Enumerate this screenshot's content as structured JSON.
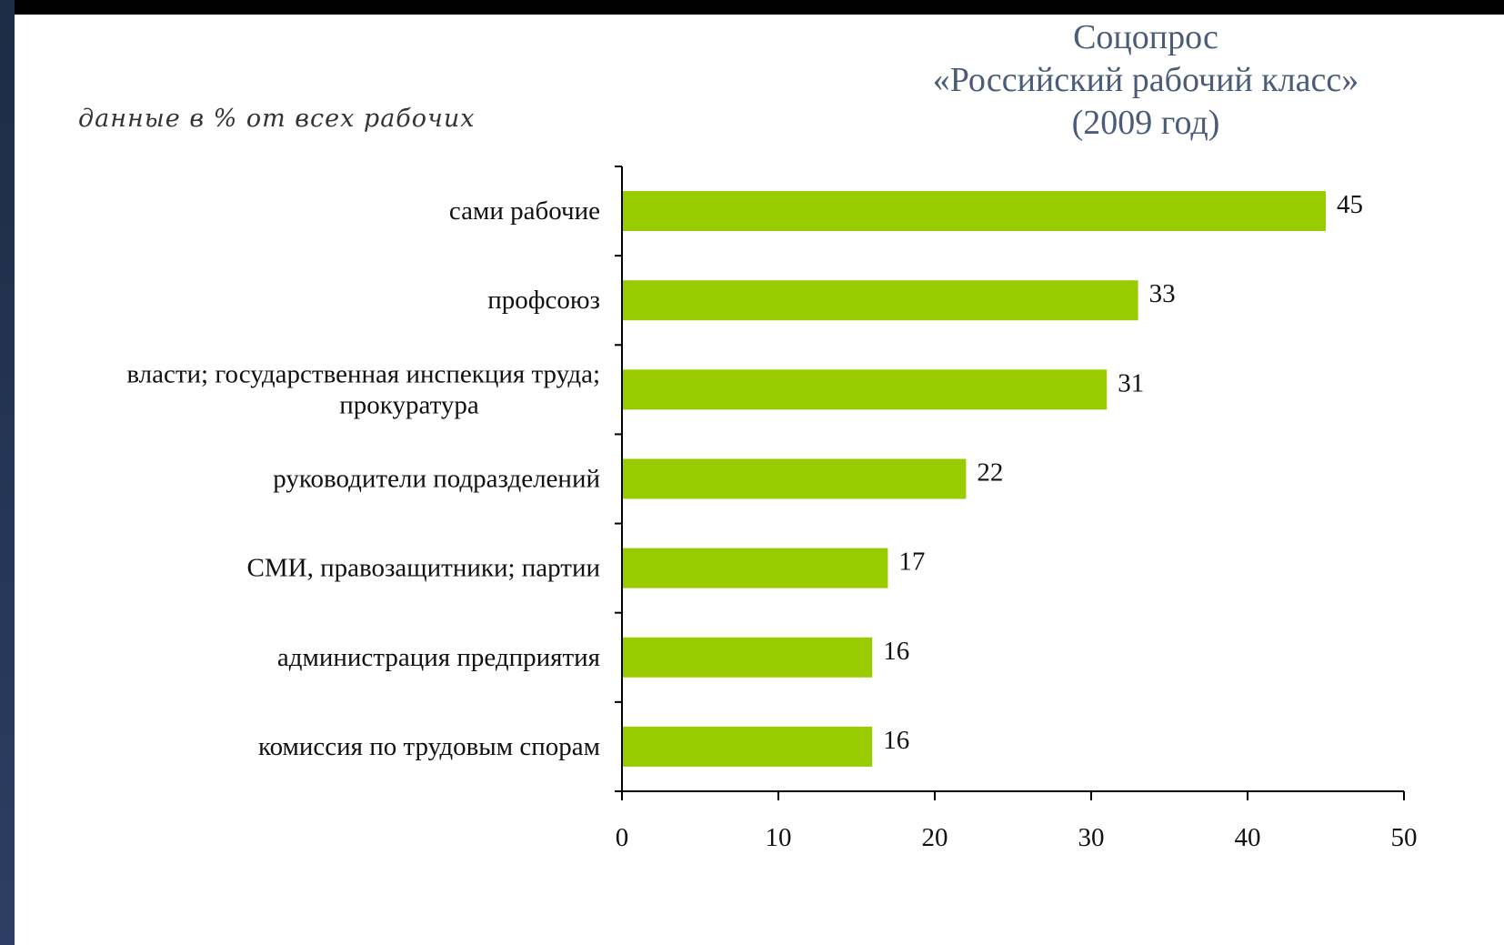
{
  "slide": {
    "title_lines": [
      "Соцопрос",
      "«Российский рабочий класс»",
      "(2009 год)"
    ]
  },
  "colors": {
    "bar": "#99cc00",
    "axis": "#000000"
  },
  "chart_data": {
    "type": "bar",
    "orientation": "horizontal",
    "note": "данные в % от всех рабочих",
    "categories": [
      "сами рабочие",
      "профсоюз",
      "власти; государственная инспекция труда; прокуратура",
      "руководители подразделений",
      "СМИ, правозащитники; партии",
      "администрация предприятия",
      "комиссия по трудовым спорам"
    ],
    "category_lines": [
      [
        "сами рабочие"
      ],
      [
        "профсоюз"
      ],
      [
        "власти; государственная инспекция труда;",
        "прокуратура"
      ],
      [
        "руководители подразделений"
      ],
      [
        "СМИ, правозащитники; партии"
      ],
      [
        "администрация предприятия"
      ],
      [
        "комиссия по трудовым спорам"
      ]
    ],
    "values": [
      45,
      33,
      31,
      22,
      17,
      16,
      16
    ],
    "value_labels": [
      "45",
      "33",
      "31",
      "22",
      "17",
      "16",
      "16"
    ],
    "xlim": [
      0,
      50
    ],
    "xticks": [
      0,
      10,
      20,
      30,
      40,
      50
    ],
    "xlabel": "",
    "ylabel": "",
    "grid": false,
    "legend": false
  }
}
